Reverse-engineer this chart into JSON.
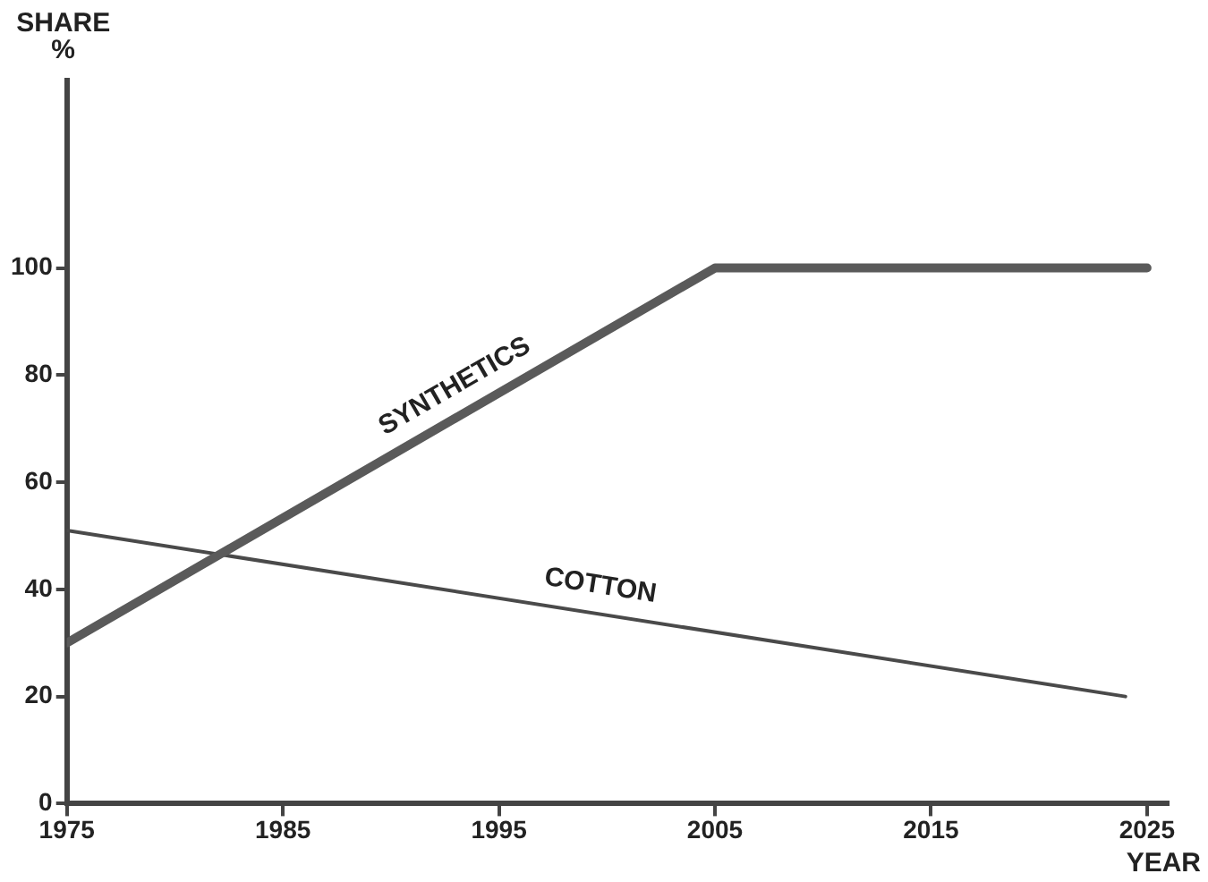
{
  "chart_data": {
    "type": "line",
    "xlabel": "YEAR",
    "ylabel": "SHARE %",
    "xlim": [
      1975,
      2026
    ],
    "ylim": [
      0,
      135
    ],
    "xticks": [
      1975,
      1985,
      1995,
      2005,
      2015,
      2025
    ],
    "yticks": [
      0,
      20,
      40,
      60,
      80,
      100
    ],
    "grid": false,
    "legend": false,
    "marker": "none",
    "line_style": "solid",
    "series": [
      {
        "name": "SYNTHETICS",
        "color": "#5a5a5a",
        "x": [
          1975,
          2005,
          2025
        ],
        "values": [
          30,
          100,
          100
        ]
      },
      {
        "name": "COTTON",
        "color": "#4a4a4a",
        "x": [
          1975,
          2024
        ],
        "values": [
          51,
          20
        ]
      }
    ]
  }
}
